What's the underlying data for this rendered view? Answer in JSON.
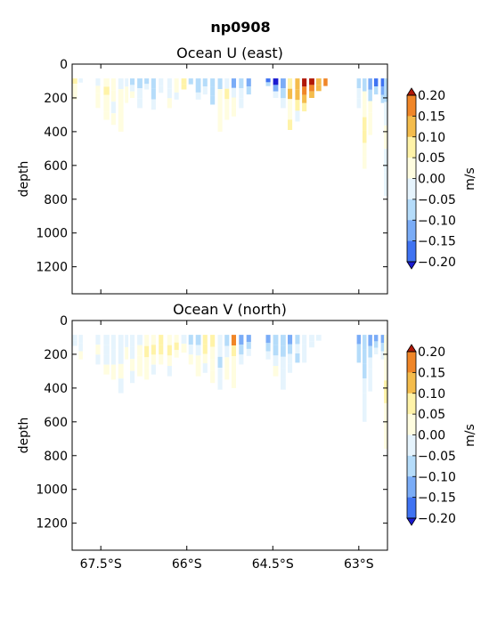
{
  "suptitle": "np0908",
  "colors": {
    "levels": [
      "#2929f5",
      "#3f73f2",
      "#7aacf7",
      "#b5dcfa",
      "#e6f4fd",
      "#fffde0",
      "#fff3a8",
      "#f4bc4c",
      "#f08628",
      "#d93010"
    ],
    "under": "#1a1ad0",
    "over": "#b01808"
  },
  "colorbar": {
    "label": "m/s",
    "ticks": [
      "0.20",
      "0.15",
      "0.10",
      "0.05",
      "0.00",
      "−0.05",
      "−0.10",
      "−0.15",
      "−0.20"
    ]
  },
  "chart_data": [
    {
      "type": "heatmap",
      "title": "Ocean U (east)",
      "ylabel": "depth",
      "xlabel": "",
      "x_ticks": [],
      "y_ticks": [
        "0",
        "200",
        "400",
        "600",
        "800",
        "1000",
        "1200"
      ],
      "xlim": [
        -68.0,
        -62.5
      ],
      "ylim": [
        1360,
        0
      ],
      "levels": [
        -0.2,
        -0.15,
        -0.1,
        -0.05,
        0,
        0.05,
        0.1,
        0.15,
        0.2
      ],
      "columns": [
        {
          "lat": -67.95,
          "w": 0.08,
          "maxDepth": 210,
          "cells": [
            0.06,
            0.02,
            0.0,
            0.0
          ]
        },
        {
          "lat": -67.85,
          "w": 0.07,
          "maxDepth": 110,
          "cells": [
            -0.02
          ]
        },
        {
          "lat": -67.55,
          "w": 0.08,
          "maxDepth": 260,
          "cells": [
            -0.04,
            0.02,
            0.03,
            0.0
          ]
        },
        {
          "lat": -67.4,
          "w": 0.1,
          "maxDepth": 330,
          "cells": [
            0.03,
            0.06,
            0.02,
            0.04,
            0.01
          ]
        },
        {
          "lat": -67.28,
          "w": 0.08,
          "maxDepth": 360,
          "cells": [
            0.02,
            0.03,
            -0.03,
            0.04
          ]
        },
        {
          "lat": -67.15,
          "w": 0.09,
          "maxDepth": 400,
          "cells": [
            -0.04,
            0.02,
            0.01,
            0.04,
            0.02
          ]
        },
        {
          "lat": -67.05,
          "w": 0.06,
          "maxDepth": 230,
          "cells": [
            -0.02,
            0.01,
            0.03
          ]
        },
        {
          "lat": -66.95,
          "w": 0.08,
          "maxDepth": 200,
          "cells": [
            -0.07,
            -0.03,
            0.02
          ]
        },
        {
          "lat": -66.82,
          "w": 0.09,
          "maxDepth": 260,
          "cells": [
            -0.08,
            -0.04,
            -0.02
          ]
        },
        {
          "lat": -66.7,
          "w": 0.08,
          "maxDepth": 150,
          "cells": [
            -0.06,
            -0.02
          ]
        },
        {
          "lat": -66.58,
          "w": 0.08,
          "maxDepth": 270,
          "cells": [
            -0.07,
            -0.06,
            -0.03
          ]
        },
        {
          "lat": -66.45,
          "w": 0.08,
          "maxDepth": 170,
          "cells": [
            -0.04,
            -0.01
          ]
        },
        {
          "lat": -66.3,
          "w": 0.08,
          "maxDepth": 260,
          "cells": [
            -0.05,
            -0.03,
            0.01
          ]
        },
        {
          "lat": -66.18,
          "w": 0.08,
          "maxDepth": 210,
          "cells": [
            0.03,
            0.02,
            -0.02
          ]
        },
        {
          "lat": -66.05,
          "w": 0.09,
          "maxDepth": 150,
          "cells": [
            0.09,
            0.06
          ]
        },
        {
          "lat": -65.93,
          "w": 0.08,
          "maxDepth": 120,
          "cells": [
            -0.06
          ]
        },
        {
          "lat": -65.8,
          "w": 0.09,
          "maxDepth": 210,
          "cells": [
            -0.08,
            -0.06,
            -0.03
          ]
        },
        {
          "lat": -65.68,
          "w": 0.08,
          "maxDepth": 180,
          "cells": [
            -0.09,
            -0.05
          ]
        },
        {
          "lat": -65.55,
          "w": 0.08,
          "maxDepth": 240,
          "cells": [
            -0.1,
            -0.07,
            -0.06
          ]
        },
        {
          "lat": -65.42,
          "w": 0.08,
          "maxDepth": 400,
          "cells": [
            -0.06,
            0.03,
            0.02,
            0.04,
            0.01
          ]
        },
        {
          "lat": -65.3,
          "w": 0.08,
          "maxDepth": 330,
          "cells": [
            -0.03,
            0.05,
            0.03,
            0.02
          ]
        },
        {
          "lat": -65.18,
          "w": 0.08,
          "maxDepth": 310,
          "cells": [
            -0.12,
            -0.05,
            0.04,
            0.02
          ]
        },
        {
          "lat": -65.05,
          "w": 0.08,
          "maxDepth": 260,
          "cells": [
            -0.1,
            -0.04,
            -0.02
          ]
        },
        {
          "lat": -64.92,
          "w": 0.08,
          "maxDepth": 180,
          "cells": [
            -0.12,
            -0.07
          ]
        },
        {
          "lat": -64.58,
          "w": 0.08,
          "maxDepth": 130,
          "cells": [
            -0.17,
            -0.06
          ]
        },
        {
          "lat": -64.45,
          "w": 0.09,
          "maxDepth": 200,
          "cells": [
            -0.22,
            -0.12,
            -0.05
          ]
        },
        {
          "lat": -64.32,
          "w": 0.09,
          "maxDepth": 260,
          "cells": [
            -0.14,
            -0.08,
            -0.03
          ]
        },
        {
          "lat": -64.2,
          "w": 0.08,
          "maxDepth": 390,
          "cells": [
            0.06,
            0.12,
            0.04,
            0.02,
            0.06
          ]
        },
        {
          "lat": -64.07,
          "w": 0.08,
          "maxDepth": 340,
          "cells": [
            0.12,
            0.14,
            0.06,
            -0.03
          ]
        },
        {
          "lat": -63.95,
          "w": 0.08,
          "maxDepth": 280,
          "cells": [
            0.2,
            0.16,
            0.11,
            0.05
          ]
        },
        {
          "lat": -63.82,
          "w": 0.09,
          "maxDepth": 200,
          "cells": [
            0.22,
            0.17,
            0.12
          ]
        },
        {
          "lat": -63.7,
          "w": 0.09,
          "maxDepth": 160,
          "cells": [
            0.14,
            0.1
          ]
        },
        {
          "lat": -63.58,
          "w": 0.07,
          "maxDepth": 130,
          "cells": [
            0.18
          ]
        },
        {
          "lat": -63.0,
          "w": 0.07,
          "maxDepth": 260,
          "cells": [
            -0.08,
            -0.05,
            -0.02
          ]
        },
        {
          "lat": -62.9,
          "w": 0.07,
          "maxDepth": 620,
          "cells": [
            -0.06,
            0.02,
            0.04,
            0.06,
            0.08,
            0.03,
            0.0
          ]
        },
        {
          "lat": -62.8,
          "w": 0.07,
          "maxDepth": 420,
          "cells": [
            -0.12,
            -0.06,
            0.03,
            0.01,
            0.02
          ]
        },
        {
          "lat": -62.7,
          "w": 0.07,
          "maxDepth": 180,
          "cells": [
            -0.16,
            -0.1
          ]
        },
        {
          "lat": -62.58,
          "w": 0.07,
          "maxDepth": 230,
          "cells": [
            -0.2,
            -0.12,
            -0.08
          ]
        },
        {
          "lat": -62.53,
          "w": 0.06,
          "maxDepth": 780,
          "cells": [
            -0.06,
            -0.02,
            0.0,
            -0.01,
            -0.02
          ]
        }
      ]
    },
    {
      "type": "heatmap",
      "title": "Ocean V (north)",
      "ylabel": "depth",
      "xlabel": "",
      "x_ticks": [
        "67.5°S",
        "66°S",
        "64.5°S",
        "63°S"
      ],
      "y_ticks": [
        "0",
        "200",
        "400",
        "600",
        "800",
        "1000",
        "1200"
      ],
      "xlim": [
        -68.0,
        -62.5
      ],
      "ylim": [
        1360,
        0
      ],
      "levels": [
        -0.2,
        -0.15,
        -0.1,
        -0.05,
        0,
        0.05,
        0.1,
        0.15,
        0.2
      ],
      "columns": [
        {
          "lat": -67.95,
          "w": 0.08,
          "maxDepth": 150,
          "cells": [
            -0.04,
            -0.02
          ]
        },
        {
          "lat": -67.85,
          "w": 0.07,
          "maxDepth": 230,
          "cells": [
            -0.03,
            -0.01,
            0.0
          ]
        },
        {
          "lat": -67.55,
          "w": 0.08,
          "maxDepth": 260,
          "cells": [
            -0.02,
            0.0,
            -0.02
          ]
        },
        {
          "lat": -67.4,
          "w": 0.1,
          "maxDepth": 320,
          "cells": [
            -0.04,
            -0.03,
            -0.02,
            0.0
          ]
        },
        {
          "lat": -67.28,
          "w": 0.08,
          "maxDepth": 350,
          "cells": [
            -0.03,
            -0.02,
            0.0
          ]
        },
        {
          "lat": -67.15,
          "w": 0.09,
          "maxDepth": 430,
          "cells": [
            -0.02,
            -0.03,
            0.0,
            -0.01
          ]
        },
        {
          "lat": -67.05,
          "w": 0.06,
          "maxDepth": 230,
          "cells": [
            -0.03,
            0.0
          ]
        },
        {
          "lat": -66.95,
          "w": 0.08,
          "maxDepth": 370,
          "cells": [
            -0.04,
            -0.02,
            0.0,
            -0.01
          ]
        },
        {
          "lat": -66.82,
          "w": 0.09,
          "maxDepth": 330,
          "cells": [
            -0.02,
            0.02,
            0.04,
            0.0
          ]
        },
        {
          "lat": -66.7,
          "w": 0.08,
          "maxDepth": 350,
          "cells": [
            0.04,
            0.06,
            0.03,
            0.01
          ]
        },
        {
          "lat": -66.58,
          "w": 0.08,
          "maxDepth": 320,
          "cells": [
            0.03,
            0.05,
            0.02,
            -0.02
          ]
        },
        {
          "lat": -66.45,
          "w": 0.08,
          "maxDepth": 260,
          "cells": [
            0.06,
            0.09,
            0.04
          ]
        },
        {
          "lat": -66.3,
          "w": 0.08,
          "maxDepth": 330,
          "cells": [
            0.02,
            0.07,
            0.03,
            -0.02
          ]
        },
        {
          "lat": -66.18,
          "w": 0.08,
          "maxDepth": 220,
          "cells": [
            0.04,
            0.08,
            0.02
          ]
        },
        {
          "lat": -66.05,
          "w": 0.09,
          "maxDepth": 190,
          "cells": [
            -0.02,
            0.03
          ]
        },
        {
          "lat": -65.93,
          "w": 0.08,
          "maxDepth": 260,
          "cells": [
            -0.06,
            -0.02,
            0.02
          ]
        },
        {
          "lat": -65.8,
          "w": 0.09,
          "maxDepth": 330,
          "cells": [
            -0.06,
            -0.04,
            0.03,
            0.01
          ]
        },
        {
          "lat": -65.68,
          "w": 0.08,
          "maxDepth": 310,
          "cells": [
            0.06,
            0.09,
            0.03,
            -0.02
          ]
        },
        {
          "lat": -65.55,
          "w": 0.08,
          "maxDepth": 370,
          "cells": [
            0.08,
            0.04,
            0.02,
            0.0
          ]
        },
        {
          "lat": -65.42,
          "w": 0.08,
          "maxDepth": 410,
          "cells": [
            -0.05,
            -0.04,
            -0.08,
            -0.03,
            -0.02
          ]
        },
        {
          "lat": -65.3,
          "w": 0.08,
          "maxDepth": 350,
          "cells": [
            -0.07,
            -0.04,
            0.02,
            0.03
          ]
        },
        {
          "lat": -65.18,
          "w": 0.08,
          "maxDepth": 400,
          "cells": [
            0.15,
            0.05,
            0.02,
            0.04,
            0.02
          ]
        },
        {
          "lat": -65.05,
          "w": 0.08,
          "maxDepth": 260,
          "cells": [
            -0.12,
            -0.06,
            -0.03
          ]
        },
        {
          "lat": -64.92,
          "w": 0.08,
          "maxDepth": 210,
          "cells": [
            -0.14,
            -0.08,
            -0.05
          ]
        },
        {
          "lat": -64.58,
          "w": 0.08,
          "maxDepth": 230,
          "cells": [
            -0.15,
            -0.08,
            -0.04
          ]
        },
        {
          "lat": -64.45,
          "w": 0.09,
          "maxDepth": 330,
          "cells": [
            -0.1,
            -0.06,
            -0.02,
            0.01
          ]
        },
        {
          "lat": -64.32,
          "w": 0.09,
          "maxDepth": 410,
          "cells": [
            -0.06,
            -0.08,
            -0.03,
            -0.05,
            -0.02
          ]
        },
        {
          "lat": -64.2,
          "w": 0.08,
          "maxDepth": 310,
          "cells": [
            -0.12,
            -0.06,
            -0.04,
            -0.02
          ]
        },
        {
          "lat": -64.07,
          "w": 0.08,
          "maxDepth": 250,
          "cells": [
            -0.08,
            -0.04,
            -0.06
          ]
        },
        {
          "lat": -63.95,
          "w": 0.08,
          "maxDepth": 250,
          "cells": [
            -0.04,
            -0.03,
            -0.02
          ]
        },
        {
          "lat": -63.82,
          "w": 0.09,
          "maxDepth": 160,
          "cells": [
            -0.03,
            -0.02
          ]
        },
        {
          "lat": -63.7,
          "w": 0.09,
          "maxDepth": 120,
          "cells": [
            -0.02
          ]
        },
        {
          "lat": -63.0,
          "w": 0.07,
          "maxDepth": 250,
          "cells": [
            -0.12,
            -0.08,
            -0.06
          ]
        },
        {
          "lat": -62.9,
          "w": 0.07,
          "maxDepth": 600,
          "cells": [
            -0.1,
            -0.06,
            -0.08,
            -0.04,
            -0.03,
            -0.02
          ]
        },
        {
          "lat": -62.8,
          "w": 0.07,
          "maxDepth": 420,
          "cells": [
            -0.14,
            -0.08,
            -0.05,
            -0.04,
            -0.02
          ]
        },
        {
          "lat": -62.7,
          "w": 0.07,
          "maxDepth": 200,
          "cells": [
            -0.12,
            -0.06,
            -0.03
          ]
        },
        {
          "lat": -62.58,
          "w": 0.07,
          "maxDepth": 230,
          "cells": [
            -0.15,
            -0.08,
            -0.04
          ]
        },
        {
          "lat": -62.53,
          "w": 0.06,
          "maxDepth": 760,
          "cells": [
            0.03,
            0.0,
            0.05,
            0.02,
            0.0
          ]
        }
      ]
    }
  ]
}
